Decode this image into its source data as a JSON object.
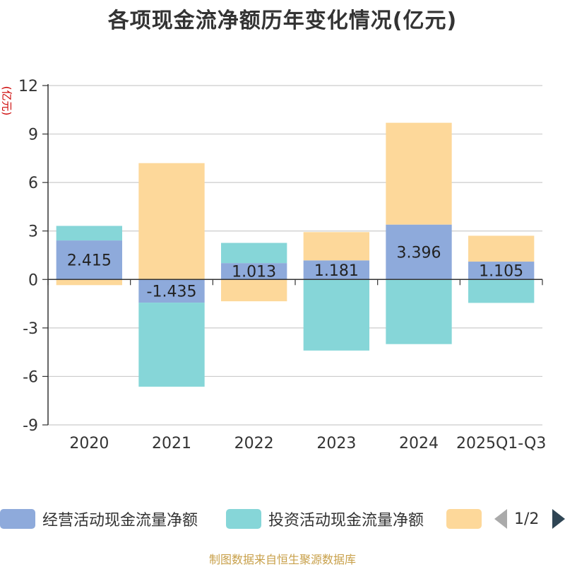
{
  "chart_data": {
    "type": "bar",
    "stacked": true,
    "title": "各项现金流净额历年变化情况(亿元)",
    "ylabel": "(亿元)",
    "xlabel": "",
    "categories": [
      "2020",
      "2021",
      "2022",
      "2023",
      "2024",
      "2025Q1-Q3"
    ],
    "yticks": [
      12,
      9,
      6,
      3,
      0,
      -3,
      -6,
      -9
    ],
    "ylim": [
      -9,
      12
    ],
    "series": [
      {
        "name": "经营活动现金流量净额",
        "color": "#8eaadb",
        "values": [
          2.415,
          -1.435,
          1.013,
          1.181,
          3.396,
          1.105
        ],
        "data_labels": [
          "2.415",
          "-1.435",
          "1.013",
          "1.181",
          "3.396",
          "1.105"
        ]
      },
      {
        "name": "投资活动现金流量净额",
        "color": "#86d6d8",
        "values": [
          0.9,
          -5.2,
          1.25,
          -4.4,
          -4.0,
          -1.45
        ]
      },
      {
        "name": "",
        "color": "#fdd89a",
        "values": [
          -0.35,
          7.2,
          -1.35,
          1.75,
          6.3,
          1.6
        ]
      }
    ],
    "legend": {
      "page": "1/2",
      "position": "bottom"
    }
  },
  "footer": {
    "source": "制图数据来自恒生聚源数据库"
  }
}
